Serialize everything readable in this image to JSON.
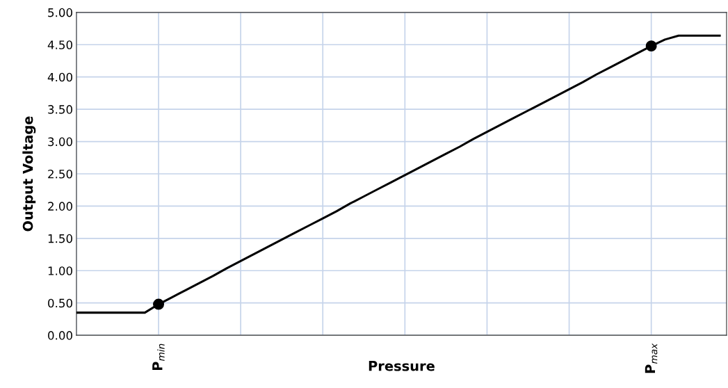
{
  "chart_data": {
    "type": "line",
    "xlabel": "Pressure",
    "ylabel": "Output Voltage",
    "categories": [
      null,
      null,
      null,
      null,
      null,
      null,
      "P$_{min}$",
      null,
      null,
      null,
      null,
      null,
      null,
      null,
      null,
      null,
      null,
      null,
      null,
      null,
      null,
      null,
      null,
      null,
      null,
      null,
      null,
      null,
      null,
      null,
      null,
      null,
      null,
      null,
      null,
      null,
      null,
      null,
      null,
      null,
      null,
      null,
      "P$_{max}$",
      null,
      null,
      null,
      null,
      null
    ],
    "ylim": [
      0,
      5
    ],
    "yticks": [
      {
        "value": 0,
        "label": "0.00"
      },
      {
        "value": 0.5,
        "label": "0.50"
      },
      {
        "value": 1,
        "label": "1.00"
      },
      {
        "value": 1.5,
        "label": "1.50"
      },
      {
        "value": 2,
        "label": "2.00"
      },
      {
        "value": 2.5,
        "label": "2.50"
      },
      {
        "value": 3,
        "label": "3.00"
      },
      {
        "value": 3.5,
        "label": "3.50"
      },
      {
        "value": 4,
        "label": "4.00"
      },
      {
        "value": 4.5,
        "label": "4.50"
      },
      {
        "value": 5,
        "label": "5.00"
      }
    ],
    "grid": true,
    "marker": "none",
    "line_style": "solid",
    "series": [
      {
        "color": "#000000",
        "values": [
          0.35,
          0.35,
          0.35,
          0.35,
          0.35,
          0.35,
          0.48,
          0.59,
          0.7,
          0.81,
          0.92,
          1.04,
          1.15,
          1.26,
          1.37,
          1.48,
          1.59,
          1.7,
          1.81,
          1.92,
          2.04,
          2.15,
          2.26,
          2.37,
          2.48,
          2.59,
          2.7,
          2.81,
          2.92,
          3.04,
          3.15,
          3.26,
          3.37,
          3.48,
          3.59,
          3.7,
          3.81,
          3.92,
          4.04,
          4.15,
          4.26,
          4.37,
          4.48,
          4.58,
          4.64,
          4.64,
          4.64,
          4.64
        ]
      },
      {
        "type": "scatter",
        "color": "#000000",
        "marker": "circle",
        "values": [
          null,
          null,
          null,
          null,
          null,
          null,
          0.48,
          null,
          null,
          null,
          null,
          null,
          null,
          null,
          null,
          null,
          null,
          null,
          null,
          null,
          null,
          null,
          null,
          null,
          null,
          null,
          null,
          null,
          null,
          null,
          null,
          null,
          null,
          null,
          null,
          null,
          null,
          null,
          null,
          null,
          null,
          null,
          4.48,
          null,
          null,
          null,
          null,
          null
        ]
      }
    ]
  }
}
